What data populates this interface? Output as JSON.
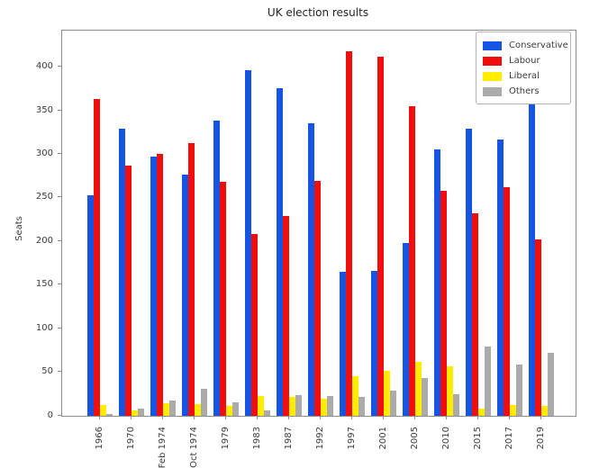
{
  "title": "UK election results",
  "chart_data": {
    "type": "bar",
    "title": "UK election results",
    "xlabel": "",
    "ylabel": "Seats",
    "categories": [
      "1966",
      "1970",
      "Feb 1974",
      "Oct 1974",
      "1979",
      "1983",
      "1987",
      "1992",
      "1997",
      "2001",
      "2005",
      "2010",
      "2015",
      "2017",
      "2019"
    ],
    "series": [
      {
        "name": "Conservative",
        "color": "#1655e3",
        "values": [
          253,
          330,
          297,
          277,
          339,
          397,
          376,
          336,
          165,
          166,
          198,
          306,
          330,
          317,
          365
        ]
      },
      {
        "name": "Labour",
        "color": "#f20d0d",
        "values": [
          364,
          287,
          301,
          313,
          269,
          209,
          229,
          270,
          418,
          412,
          355,
          258,
          232,
          262,
          202
        ]
      },
      {
        "name": "Liberal",
        "color": "#ffec00",
        "values": [
          12,
          6,
          14,
          13,
          11,
          23,
          22,
          20,
          46,
          52,
          62,
          57,
          8,
          12,
          11
        ]
      },
      {
        "name": "Others",
        "color": "#ababab",
        "values": [
          2,
          8,
          18,
          31,
          16,
          6,
          24,
          23,
          22,
          29,
          43,
          25,
          80,
          59,
          72
        ]
      }
    ],
    "ylim": [
      0,
      442
    ],
    "yticks": [
      0,
      50,
      100,
      150,
      200,
      250,
      300,
      350,
      400
    ],
    "grid": false,
    "legend_position": "upper right",
    "legend_labels": [
      "Conservative",
      "Labour",
      "Liberal",
      "Others"
    ]
  },
  "colors": {
    "conservative_blue": "#1655e3",
    "labour_red": "#f20d0d",
    "liberal_yellow": "#ffec00",
    "others_gray": "#ababab",
    "spine_gray": "#8c8c8c",
    "text_dark": "#3c3c3c"
  }
}
